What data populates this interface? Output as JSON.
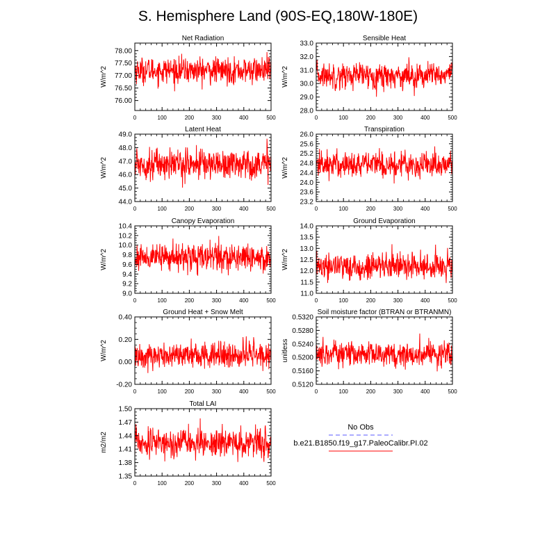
{
  "title": "S. Hemisphere Land (90S-EQ,180W-180E)",
  "legend": {
    "obs_label": "No Obs",
    "obs_color": "#5a5aff",
    "case_label": "b.e21.B1850.f19_g17.PaleoCalibr.PI.02",
    "case_color": "#ff0000"
  },
  "chart_data": [
    {
      "type": "line",
      "title": "Net Radiation",
      "ylabel": "W/m^2",
      "xlim": [
        0,
        500
      ],
      "xticks": [
        0,
        100,
        200,
        300,
        400,
        500
      ],
      "ylim": [
        75.6,
        78.3
      ],
      "yticks": [
        76.0,
        76.5,
        77.0,
        77.5,
        78.0
      ],
      "ytick_labels": [
        "76.00",
        "76.50",
        "77.00",
        "77.50",
        "78.00"
      ],
      "n": 500,
      "mean": 77.2,
      "amp": 0.3,
      "color": "#ff0000"
    },
    {
      "type": "line",
      "title": "Sensible Heat",
      "ylabel": "W/m^2",
      "xlim": [
        0,
        500
      ],
      "xticks": [
        0,
        100,
        200,
        300,
        400,
        500
      ],
      "ylim": [
        28.0,
        33.0
      ],
      "yticks": [
        28,
        29,
        30,
        31,
        32,
        33
      ],
      "ytick_labels": [
        "28.0",
        "29.0",
        "30.0",
        "31.0",
        "32.0",
        "33.0"
      ],
      "n": 500,
      "mean": 30.6,
      "amp": 0.55,
      "color": "#ff0000"
    },
    {
      "type": "line",
      "title": "Latent Heat",
      "ylabel": "W/m^2",
      "xlim": [
        0,
        500
      ],
      "xticks": [
        0,
        100,
        200,
        300,
        400,
        500
      ],
      "ylim": [
        44.0,
        49.0
      ],
      "yticks": [
        44,
        45,
        46,
        47,
        48,
        49
      ],
      "ytick_labels": [
        "44.0",
        "45.0",
        "46.0",
        "47.0",
        "48.0",
        "49.0"
      ],
      "n": 500,
      "mean": 46.8,
      "amp": 0.65,
      "color": "#ff0000"
    },
    {
      "type": "line",
      "title": "Transpiration",
      "ylabel": "W/m^2",
      "xlim": [
        0,
        500
      ],
      "xticks": [
        0,
        100,
        200,
        300,
        400,
        500
      ],
      "ylim": [
        23.2,
        26.0
      ],
      "yticks": [
        23.2,
        23.6,
        24.0,
        24.4,
        24.8,
        25.2,
        25.6,
        26.0
      ],
      "ytick_labels": [
        "23.2",
        "23.6",
        "24.0",
        "24.4",
        "24.8",
        "25.2",
        "25.6",
        "26.0"
      ],
      "n": 500,
      "mean": 24.75,
      "amp": 0.32,
      "color": "#ff0000"
    },
    {
      "type": "line",
      "title": "Canopy Evaporation",
      "ylabel": "W/m^2",
      "xlim": [
        0,
        500
      ],
      "xticks": [
        0,
        100,
        200,
        300,
        400,
        500
      ],
      "ylim": [
        9.0,
        10.4
      ],
      "yticks": [
        9.0,
        9.2,
        9.4,
        9.6,
        9.8,
        10.0,
        10.2,
        10.4
      ],
      "ytick_labels": [
        "9.0",
        "9.2",
        "9.4",
        "9.6",
        "9.8",
        "10.0",
        "10.2",
        "10.4"
      ],
      "n": 500,
      "mean": 9.75,
      "amp": 0.16,
      "color": "#ff0000"
    },
    {
      "type": "line",
      "title": "Ground Evaporation",
      "ylabel": "W/m^2",
      "xlim": [
        0,
        500
      ],
      "xticks": [
        0,
        100,
        200,
        300,
        400,
        500
      ],
      "ylim": [
        11.0,
        14.0
      ],
      "yticks": [
        11.0,
        11.5,
        12.0,
        12.5,
        13.0,
        13.5,
        14.0
      ],
      "ytick_labels": [
        "11.0",
        "11.5",
        "12.0",
        "12.5",
        "13.0",
        "13.5",
        "14.0"
      ],
      "n": 500,
      "mean": 12.2,
      "amp": 0.35,
      "color": "#ff0000"
    },
    {
      "type": "line",
      "title": "Ground Heat + Snow Melt",
      "ylabel": "W/m^2",
      "xlim": [
        0,
        500
      ],
      "xticks": [
        0,
        100,
        200,
        300,
        400,
        500
      ],
      "ylim": [
        -0.2,
        0.4
      ],
      "yticks": [
        -0.2,
        0.0,
        0.2,
        0.4
      ],
      "ytick_labels": [
        "-0.20",
        "0.00",
        "0.20",
        "0.40"
      ],
      "n": 500,
      "mean": 0.06,
      "amp": 0.07,
      "color": "#ff0000"
    },
    {
      "type": "line",
      "title": "Soil moisture factor (BTRAN or BTRANMN)",
      "ylabel": "unitless",
      "xlim": [
        0,
        500
      ],
      "xticks": [
        0,
        100,
        200,
        300,
        400,
        500
      ],
      "ylim": [
        0.512,
        0.532
      ],
      "yticks": [
        0.512,
        0.516,
        0.52,
        0.524,
        0.528,
        0.532
      ],
      "ytick_labels": [
        "0.5120",
        "0.5160",
        "0.5200",
        "0.5240",
        "0.5280",
        "0.5320"
      ],
      "n": 500,
      "mean": 0.521,
      "amp": 0.0022,
      "color": "#ff0000"
    },
    {
      "type": "line",
      "title": "Total LAI",
      "ylabel": "m2/m2",
      "xlim": [
        0,
        500
      ],
      "xticks": [
        0,
        100,
        200,
        300,
        400,
        500
      ],
      "ylim": [
        1.35,
        1.5
      ],
      "yticks": [
        1.35,
        1.38,
        1.41,
        1.44,
        1.47,
        1.5
      ],
      "ytick_labels": [
        "1.35",
        "1.38",
        "1.41",
        "1.44",
        "1.47",
        "1.50"
      ],
      "n": 500,
      "mean": 1.425,
      "amp": 0.018,
      "color": "#ff0000"
    }
  ]
}
